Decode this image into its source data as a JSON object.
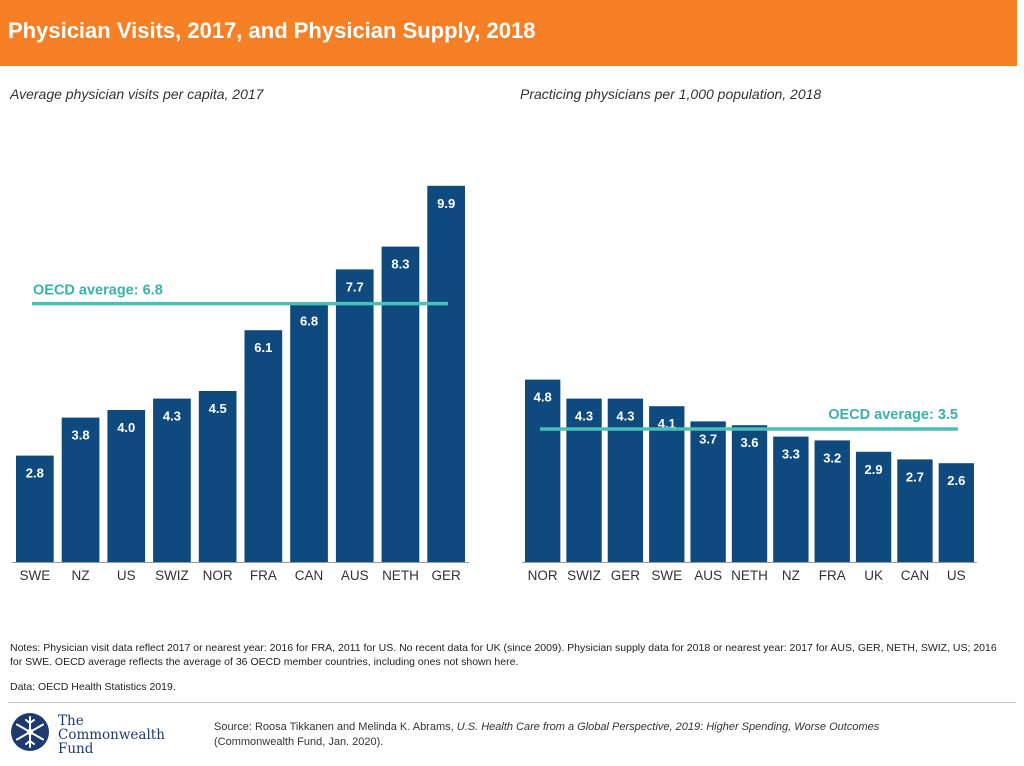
{
  "header": {
    "title": "Physician Visits, 2017, and Physician Supply, 2018"
  },
  "colors": {
    "header": "#f58025",
    "bar": "#0f4a7e",
    "avg_line": "#4dbdb7",
    "avg_label": "#39b3a9"
  },
  "chart_data": [
    {
      "type": "bar",
      "title": "Average physician visits per capita, 2017",
      "categories": [
        "SWE",
        "NZ",
        "US",
        "SWIZ",
        "NOR",
        "FRA",
        "CAN",
        "AUS",
        "NETH",
        "GER"
      ],
      "values": [
        2.8,
        3.8,
        4.0,
        4.3,
        4.5,
        6.1,
        6.8,
        7.7,
        8.3,
        9.9
      ],
      "value_labels": [
        "2.8",
        "3.8",
        "4.0",
        "4.3",
        "4.5",
        "6.1",
        "6.8",
        "7.7",
        "8.3",
        "9.9"
      ],
      "reference_line": {
        "label": "OECD average: 6.8",
        "value": 6.8
      },
      "ylim": [
        0,
        10
      ],
      "grid": false
    },
    {
      "type": "bar",
      "title": "Practicing physicians per 1,000 population, 2018",
      "categories": [
        "NOR",
        "SWIZ",
        "GER",
        "SWE",
        "AUS",
        "NETH",
        "NZ",
        "FRA",
        "UK",
        "CAN",
        "US"
      ],
      "values": [
        4.8,
        4.3,
        4.3,
        4.1,
        3.7,
        3.6,
        3.3,
        3.2,
        2.9,
        2.7,
        2.6
      ],
      "value_labels": [
        "4.8",
        "4.3",
        "4.3",
        "4.1",
        "3.7",
        "3.6",
        "3.3",
        "3.2",
        "2.9",
        "2.7",
        "2.6"
      ],
      "reference_line": {
        "label": "OECD average: 3.5",
        "value": 3.5
      },
      "ylim": [
        0,
        10
      ],
      "grid": false
    }
  ],
  "notes": "Notes: Physician visit data reflect 2017 or nearest year: 2016 for FRA, 2011 for US. No recent data for UK (since 2009). Physician supply data for 2018 or nearest year: 2017 for AUS, GER, NETH, SWIZ, US; 2016 for SWE. OECD average reflects the average of 36 OECD member countries, including ones not shown here.",
  "data_source": "Data: OECD Health Statistics 2019.",
  "logo": {
    "line1": "The",
    "line2": "Commonwealth",
    "line3": "Fund"
  },
  "source": {
    "prefix": "Source: Roosa Tikkanen and Melinda K. Abrams, ",
    "title": "U.S. Health Care from a Global Perspective, 2019: Higher Spending, Worse Outcomes",
    "suffix": "(Commonwealth Fund, Jan. 2020)."
  }
}
